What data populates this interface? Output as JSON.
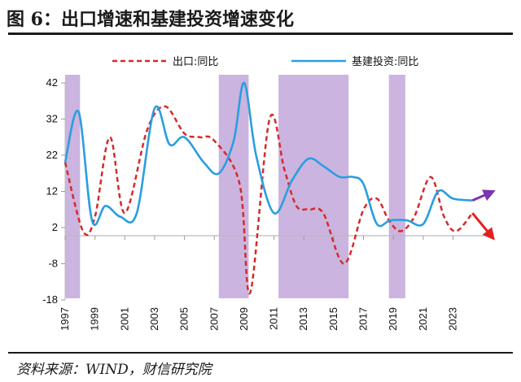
{
  "header": {
    "title": "图 6：出口增速和基建投资增速变化"
  },
  "footer": {
    "source": "资料来源：WIND，财信研究院"
  },
  "chart_data": {
    "type": "line",
    "title": "",
    "xlabel": "",
    "ylabel": "",
    "ylim": [
      -18,
      42
    ],
    "yticks": [
      42,
      32,
      22,
      12,
      2,
      -8,
      -18
    ],
    "xlim": [
      1997,
      2025.7
    ],
    "xticks": [
      1997,
      1999,
      2001,
      2003,
      2005,
      2007,
      2009,
      2011,
      2013,
      2015,
      2017,
      2019,
      2021,
      2023
    ],
    "legend": "top",
    "grid": false,
    "shaded_periods": [
      [
        1997,
        1998
      ],
      [
        2007.3,
        2009.3
      ],
      [
        2011.3,
        2016
      ],
      [
        2018.7,
        2019.8
      ]
    ],
    "series": [
      {
        "name": "出口:同比",
        "color": "#d42a2a",
        "style": "dashed",
        "x": [
          1997,
          1998.2,
          1999,
          2000,
          2001,
          2002.5,
          2003.7,
          2005,
          2006,
          2007,
          2008.7,
          2009.4,
          2010.7,
          2011.7,
          2012.5,
          2013.3,
          2014.3,
          2015.7,
          2017,
          2017.9,
          2018.7,
          2019.5,
          2020.4,
          2021.5,
          2022.4,
          2023.2,
          2024.3
        ],
        "values": [
          20,
          1,
          5,
          27,
          6,
          29,
          35.5,
          28,
          27,
          26,
          14,
          -16,
          32,
          18,
          8,
          7,
          6,
          -8,
          7,
          10,
          4,
          1,
          5,
          16,
          5,
          1,
          6
        ]
      },
      {
        "name": "基建投资:同比",
        "color": "#2a9ee0",
        "style": "solid",
        "x": [
          1997,
          1997.9,
          1998.8,
          1999.7,
          2000.7,
          2001.8,
          2003,
          2004,
          2005,
          2006.3,
          2007.3,
          2008.3,
          2009,
          2009.8,
          2011,
          2012.2,
          2013.3,
          2014.3,
          2015.4,
          2016.3,
          2017,
          2017.9,
          2018.8,
          2019.9,
          2021,
          2022,
          2023,
          2024.3
        ],
        "values": [
          20,
          34,
          4,
          8,
          5,
          6,
          35,
          25,
          27,
          20,
          17,
          26,
          42,
          22,
          6,
          15,
          21,
          19,
          16,
          16,
          14,
          3,
          4,
          4,
          3,
          12,
          10,
          9.5
        ]
      }
    ],
    "annotations": [
      {
        "type": "arrow",
        "color": "#7a35b0",
        "from": [
          2024.3,
          9.5
        ],
        "to": [
          2025.7,
          12
        ]
      },
      {
        "type": "arrow",
        "color": "#e61e1e",
        "from": [
          2024.3,
          6
        ],
        "to": [
          2025.7,
          -1
        ]
      }
    ]
  }
}
